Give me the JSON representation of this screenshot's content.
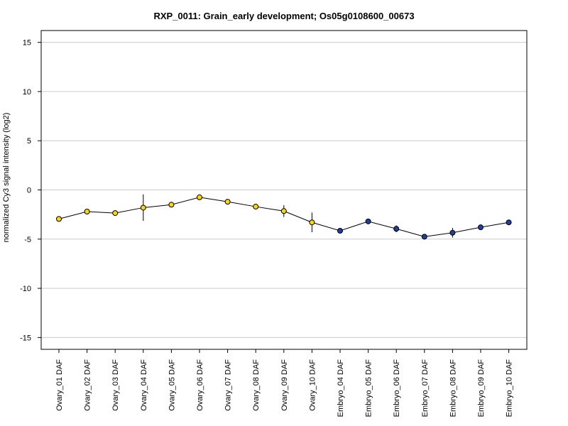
{
  "chart_data": {
    "type": "line",
    "title": "RXP_0011: Grain_early development; Os05g0108600_00673",
    "xlabel": "",
    "ylabel": "normalized Cy3 signal intensity (log2)",
    "ylim": [
      -16.2,
      16.2
    ],
    "yticks": [
      -15,
      -10,
      -5,
      0,
      5,
      10,
      15
    ],
    "grid": true,
    "categories": [
      "Ovary_01 DAF",
      "Ovary_02 DAF",
      "Ovary_03 DAF",
      "Ovary_04 DAF",
      "Ovary_05 DAF",
      "Ovary_06 DAF",
      "Ovary_07 DAF",
      "Ovary_08 DAF",
      "Ovary_09 DAF",
      "Ovary_10 DAF",
      "Embryo_04 DAF",
      "Embryo_05 DAF",
      "Embryo_06 DAF",
      "Embryo_07 DAF",
      "Embryo_08 DAF",
      "Embryo_09 DAF",
      "Embryo_10 DAF"
    ],
    "series": [
      {
        "values": [
          -2.95,
          -2.2,
          -2.35,
          -1.8,
          -1.5,
          -0.75,
          -1.2,
          -1.7,
          -2.15,
          -3.3,
          -4.15,
          -3.2,
          -3.95,
          -4.75,
          -4.35,
          -3.8,
          -3.3
        ],
        "error": [
          0,
          0,
          0,
          1.35,
          0,
          0.05,
          0,
          0,
          0.6,
          1.0,
          0,
          0,
          0.35,
          0,
          0.5,
          0,
          0
        ]
      }
    ],
    "point_colors": [
      "#FFD700",
      "#FFD700",
      "#FFD700",
      "#FFD700",
      "#FFD700",
      "#FFD700",
      "#FFD700",
      "#FFD700",
      "#FFD700",
      "#FFD700",
      "#1E3FA0",
      "#1E3FA0",
      "#1E3FA0",
      "#1E3FA0",
      "#1E3FA0",
      "#1E3FA0",
      "#1E3FA0"
    ],
    "line_color": "#000000",
    "gridline_color": "#cccccc"
  }
}
